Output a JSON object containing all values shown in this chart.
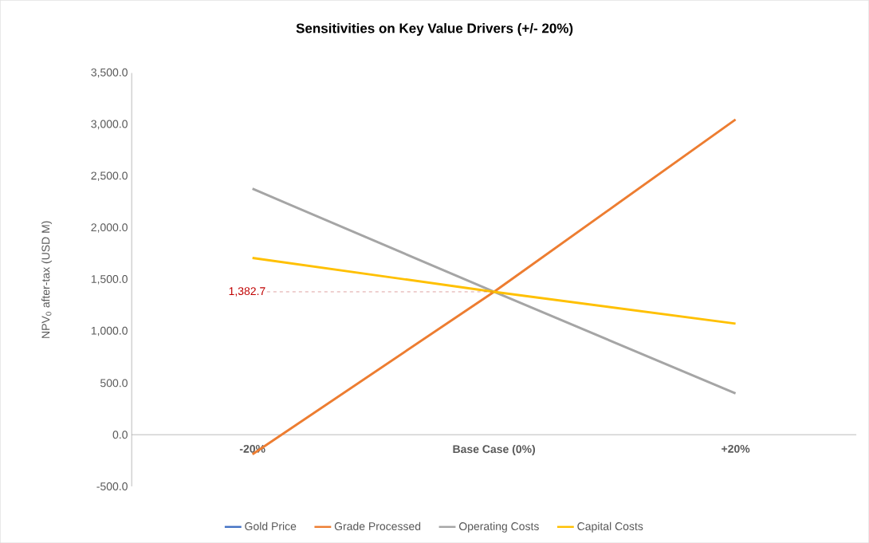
{
  "chart_data": {
    "type": "line",
    "title": "Sensitivities on Key Value Drivers (+/- 20%)",
    "ylabel": "NPV$_{0}$ after-tax (USD M)",
    "categories": [
      "-20%",
      "Base Case (0%)",
      "+20%"
    ],
    "series": [
      {
        "name": "Gold Price",
        "color": "#4472c4",
        "values": [
          null,
          null,
          null
        ]
      },
      {
        "name": "Grade Processed",
        "color": "#ed7d31",
        "values": [
          -190,
          1382.7,
          3050
        ]
      },
      {
        "name": "Operating Costs",
        "color": "#a5a5a5",
        "values": [
          2380,
          1382.7,
          400
        ]
      },
      {
        "name": "Capital Costs",
        "color": "#ffc000",
        "values": [
          1710,
          1382.7,
          1075
        ]
      }
    ],
    "ylim": [
      -500,
      3500
    ],
    "yticks": [
      {
        "value": -500,
        "label": "-500.0"
      },
      {
        "value": 0,
        "label": "0.0"
      },
      {
        "value": 500,
        "label": "500.0"
      },
      {
        "value": 1000,
        "label": "1,000.0"
      },
      {
        "value": 1500,
        "label": "1,500.0"
      },
      {
        "value": 2000,
        "label": "2,000.0"
      },
      {
        "value": 2500,
        "label": "2,500.0"
      },
      {
        "value": 3000,
        "label": "3,000.0"
      },
      {
        "value": 3500,
        "label": "3,500.0"
      }
    ],
    "annotations": [
      {
        "text": "1,382.7",
        "x": "Base Case (0%)",
        "y": 1382.7
      }
    ],
    "legend": "bottom",
    "grid": false,
    "marker": "none",
    "line_style": "solid"
  }
}
